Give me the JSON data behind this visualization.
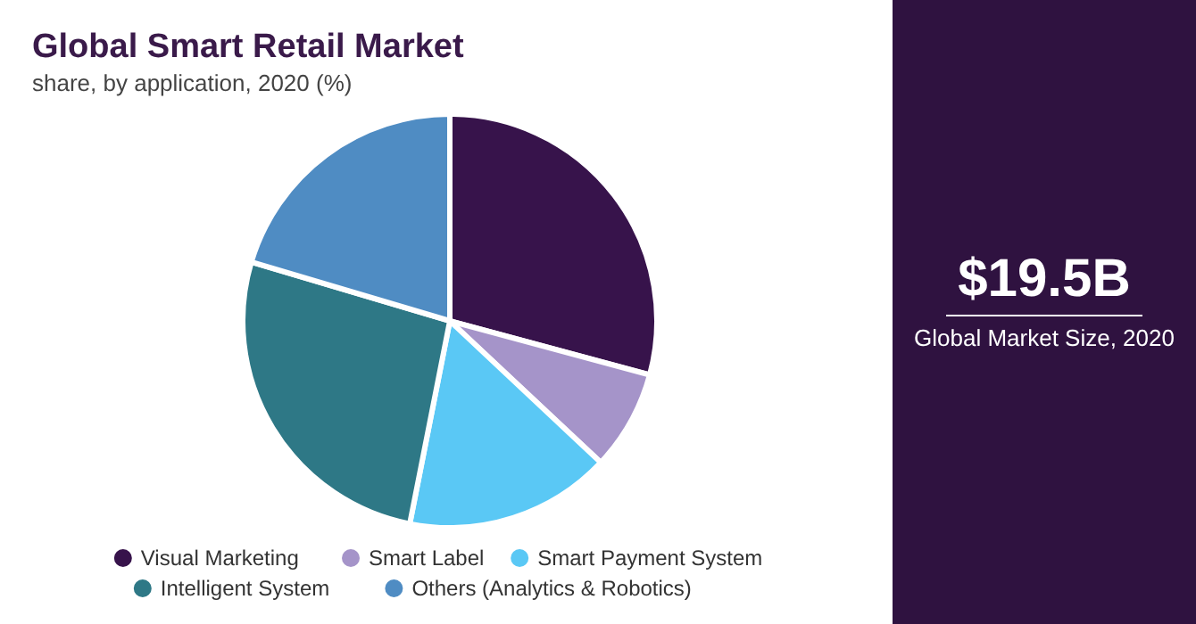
{
  "chart_data": [
    {
      "type": "pie",
      "title": "Global Smart Retail Market",
      "subtitle": "share, by application, 2020 (%)",
      "categories": [
        "Visual Marketing",
        "Smart Label",
        "Smart Payment System",
        "Intelligent System",
        "Others (Analytics & Robotics)"
      ],
      "values": [
        29.2,
        7.8,
        16.1,
        26.5,
        20.4
      ],
      "colors": [
        "#37134b",
        "#a594c9",
        "#5ac8f5",
        "#2e7886",
        "#4f8cc3"
      ],
      "legend": "bottom"
    },
    {
      "type": "other",
      "title": "$19.5B",
      "subtitle": "Global Market Size, 2020"
    }
  ]
}
